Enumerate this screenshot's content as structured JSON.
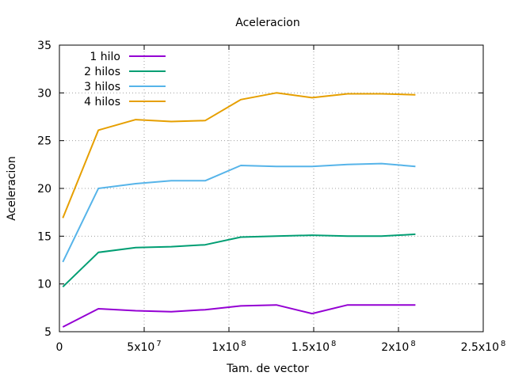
{
  "chart_data": {
    "type": "line",
    "title": "Aceleracion",
    "xlabel": "Tam. de vector",
    "ylabel": "Aceleracion",
    "xlim": [
      0,
      250000000
    ],
    "ylim": [
      5,
      35
    ],
    "grid": true,
    "legend_position": "top-left",
    "x_ticks": [
      {
        "value": 0,
        "base": "0",
        "exp": ""
      },
      {
        "value": 50000000,
        "base": "5x10",
        "exp": "7"
      },
      {
        "value": 100000000,
        "base": "1x10",
        "exp": "8"
      },
      {
        "value": 150000000,
        "base": "1.5x10",
        "exp": "8"
      },
      {
        "value": 200000000,
        "base": "2x10",
        "exp": "8"
      },
      {
        "value": 250000000,
        "base": "2.5x10",
        "exp": "8"
      }
    ],
    "y_ticks": [
      5,
      10,
      15,
      20,
      25,
      30,
      35
    ],
    "x": [
      2000000,
      23000000,
      45000000,
      66000000,
      86000000,
      107000000,
      128000000,
      149000000,
      170000000,
      190000000,
      210000000
    ],
    "series": [
      {
        "name": "1 hilo",
        "color": "#9400d3",
        "values": [
          5.5,
          7.4,
          7.2,
          7.1,
          7.3,
          7.7,
          7.8,
          6.9,
          7.8,
          7.8,
          7.8
        ]
      },
      {
        "name": "2 hilos",
        "color": "#009e73",
        "values": [
          9.7,
          13.3,
          13.8,
          13.9,
          14.1,
          14.9,
          15.0,
          15.1,
          15.0,
          15.0,
          15.2
        ]
      },
      {
        "name": "3 hilos",
        "color": "#56b4e9",
        "values": [
          12.3,
          20.0,
          20.5,
          20.8,
          20.8,
          22.4,
          22.3,
          22.3,
          22.5,
          22.6,
          22.3
        ]
      },
      {
        "name": "4 hilos",
        "color": "#e69f00",
        "values": [
          16.9,
          26.1,
          27.2,
          27.0,
          27.1,
          29.3,
          30.0,
          29.5,
          29.9,
          29.9,
          29.8
        ]
      }
    ]
  }
}
